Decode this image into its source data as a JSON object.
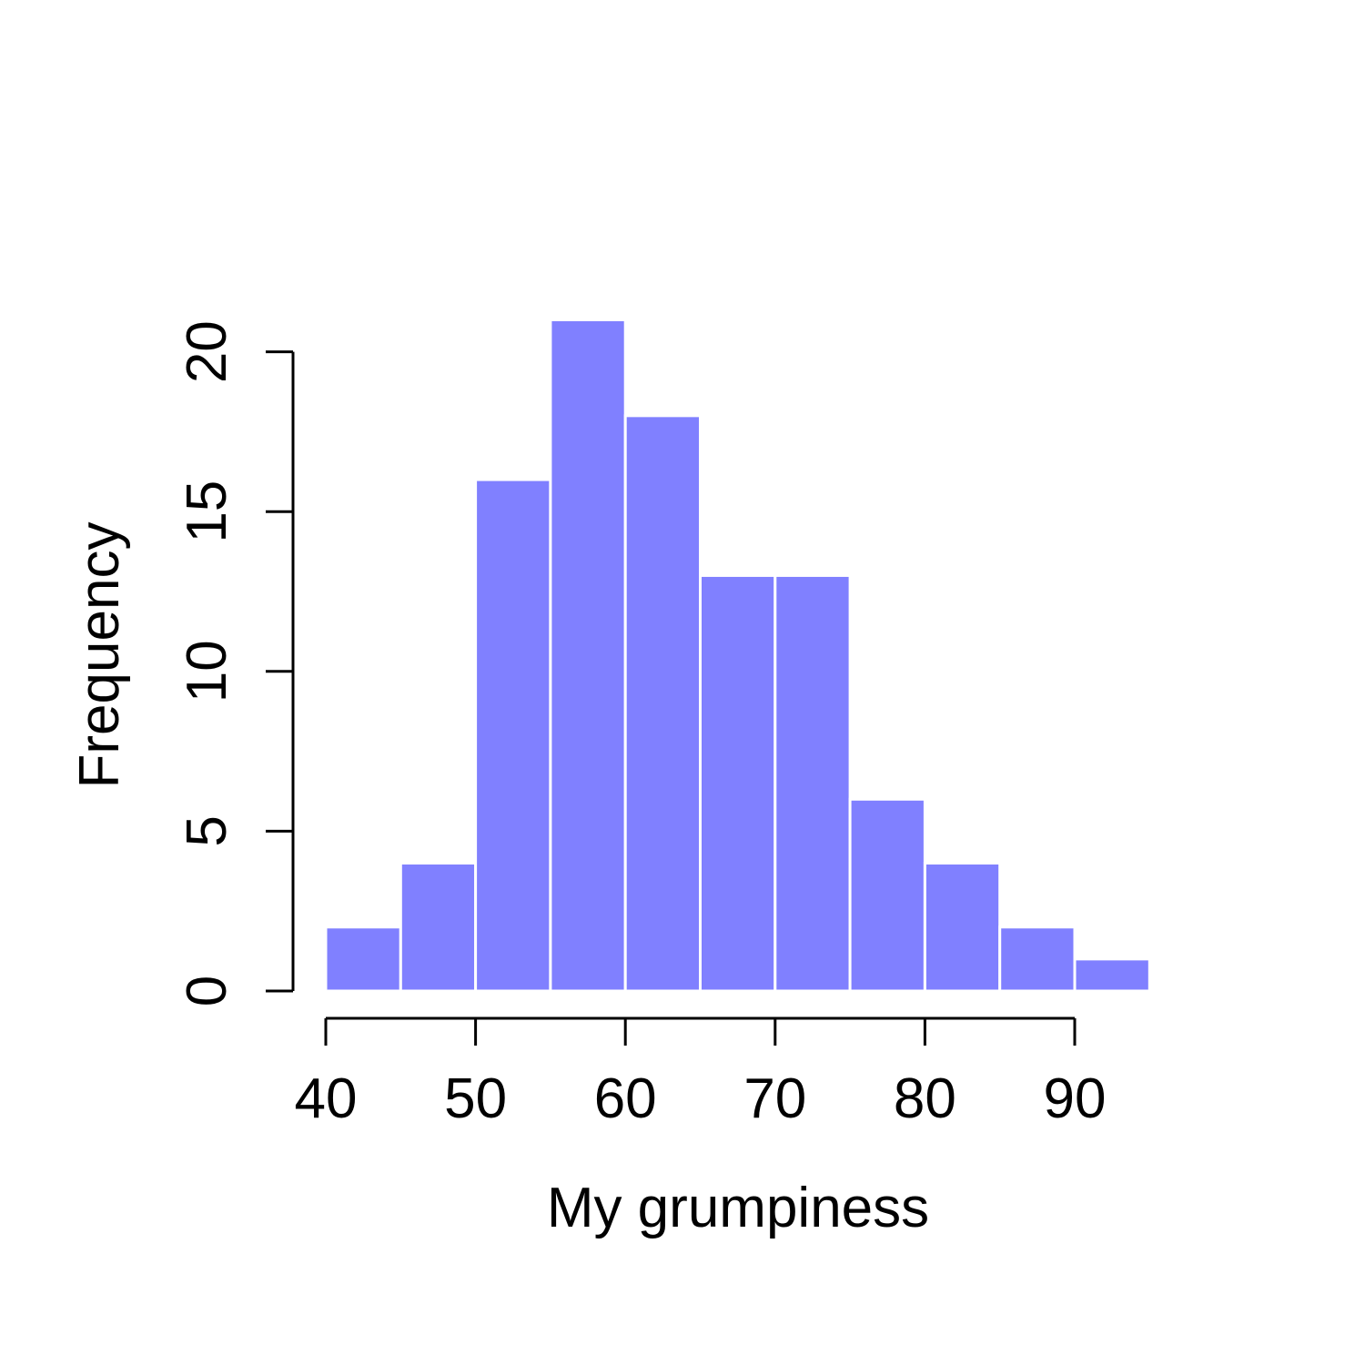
{
  "chart_data": {
    "type": "bar",
    "subtype": "histogram",
    "title": "",
    "xlabel": "My grumpiness",
    "ylabel": "Frequency",
    "bins": [
      {
        "start": 40,
        "end": 45,
        "count": 2
      },
      {
        "start": 45,
        "end": 50,
        "count": 4
      },
      {
        "start": 50,
        "end": 55,
        "count": 16
      },
      {
        "start": 55,
        "end": 60,
        "count": 21
      },
      {
        "start": 60,
        "end": 65,
        "count": 18
      },
      {
        "start": 65,
        "end": 70,
        "count": 13
      },
      {
        "start": 70,
        "end": 75,
        "count": 13
      },
      {
        "start": 75,
        "end": 80,
        "count": 6
      },
      {
        "start": 80,
        "end": 85,
        "count": 4
      },
      {
        "start": 85,
        "end": 90,
        "count": 2
      },
      {
        "start": 90,
        "end": 95,
        "count": 1
      }
    ],
    "x_ticks": [
      40,
      50,
      60,
      70,
      80,
      90
    ],
    "y_ticks": [
      0,
      5,
      10,
      15,
      20
    ],
    "xlim": [
      40,
      95
    ],
    "ylim": [
      0,
      21
    ],
    "bar_color": "#8080ff",
    "bar_border_color": "#ffffff",
    "grid": false,
    "legend": "none"
  }
}
